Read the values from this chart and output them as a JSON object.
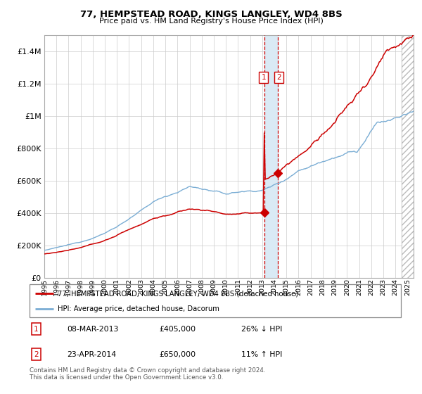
{
  "title": "77, HEMPSTEAD ROAD, KINGS LANGLEY, WD4 8BS",
  "subtitle": "Price paid vs. HM Land Registry's House Price Index (HPI)",
  "legend_line1": "77, HEMPSTEAD ROAD, KINGS LANGLEY, WD4 8BS (detached house)",
  "legend_line2": "HPI: Average price, detached house, Dacorum",
  "transaction1_date": "08-MAR-2013",
  "transaction1_price": 405000,
  "transaction1_pct": "26% ↓ HPI",
  "transaction2_date": "23-APR-2014",
  "transaction2_price": 650000,
  "transaction2_pct": "11% ↑ HPI",
  "footer": "Contains HM Land Registry data © Crown copyright and database right 2024.\nThis data is licensed under the Open Government Licence v3.0.",
  "hpi_color": "#7aadd4",
  "price_color": "#CC0000",
  "point_color": "#CC0000",
  "vband_color": "#daeaf5",
  "grid_color": "#cccccc",
  "ylim": [
    0,
    1500000
  ],
  "xlim_start": 1995.0,
  "xlim_end": 2025.5,
  "t1_x": 2013.167,
  "t2_x": 2014.292
}
